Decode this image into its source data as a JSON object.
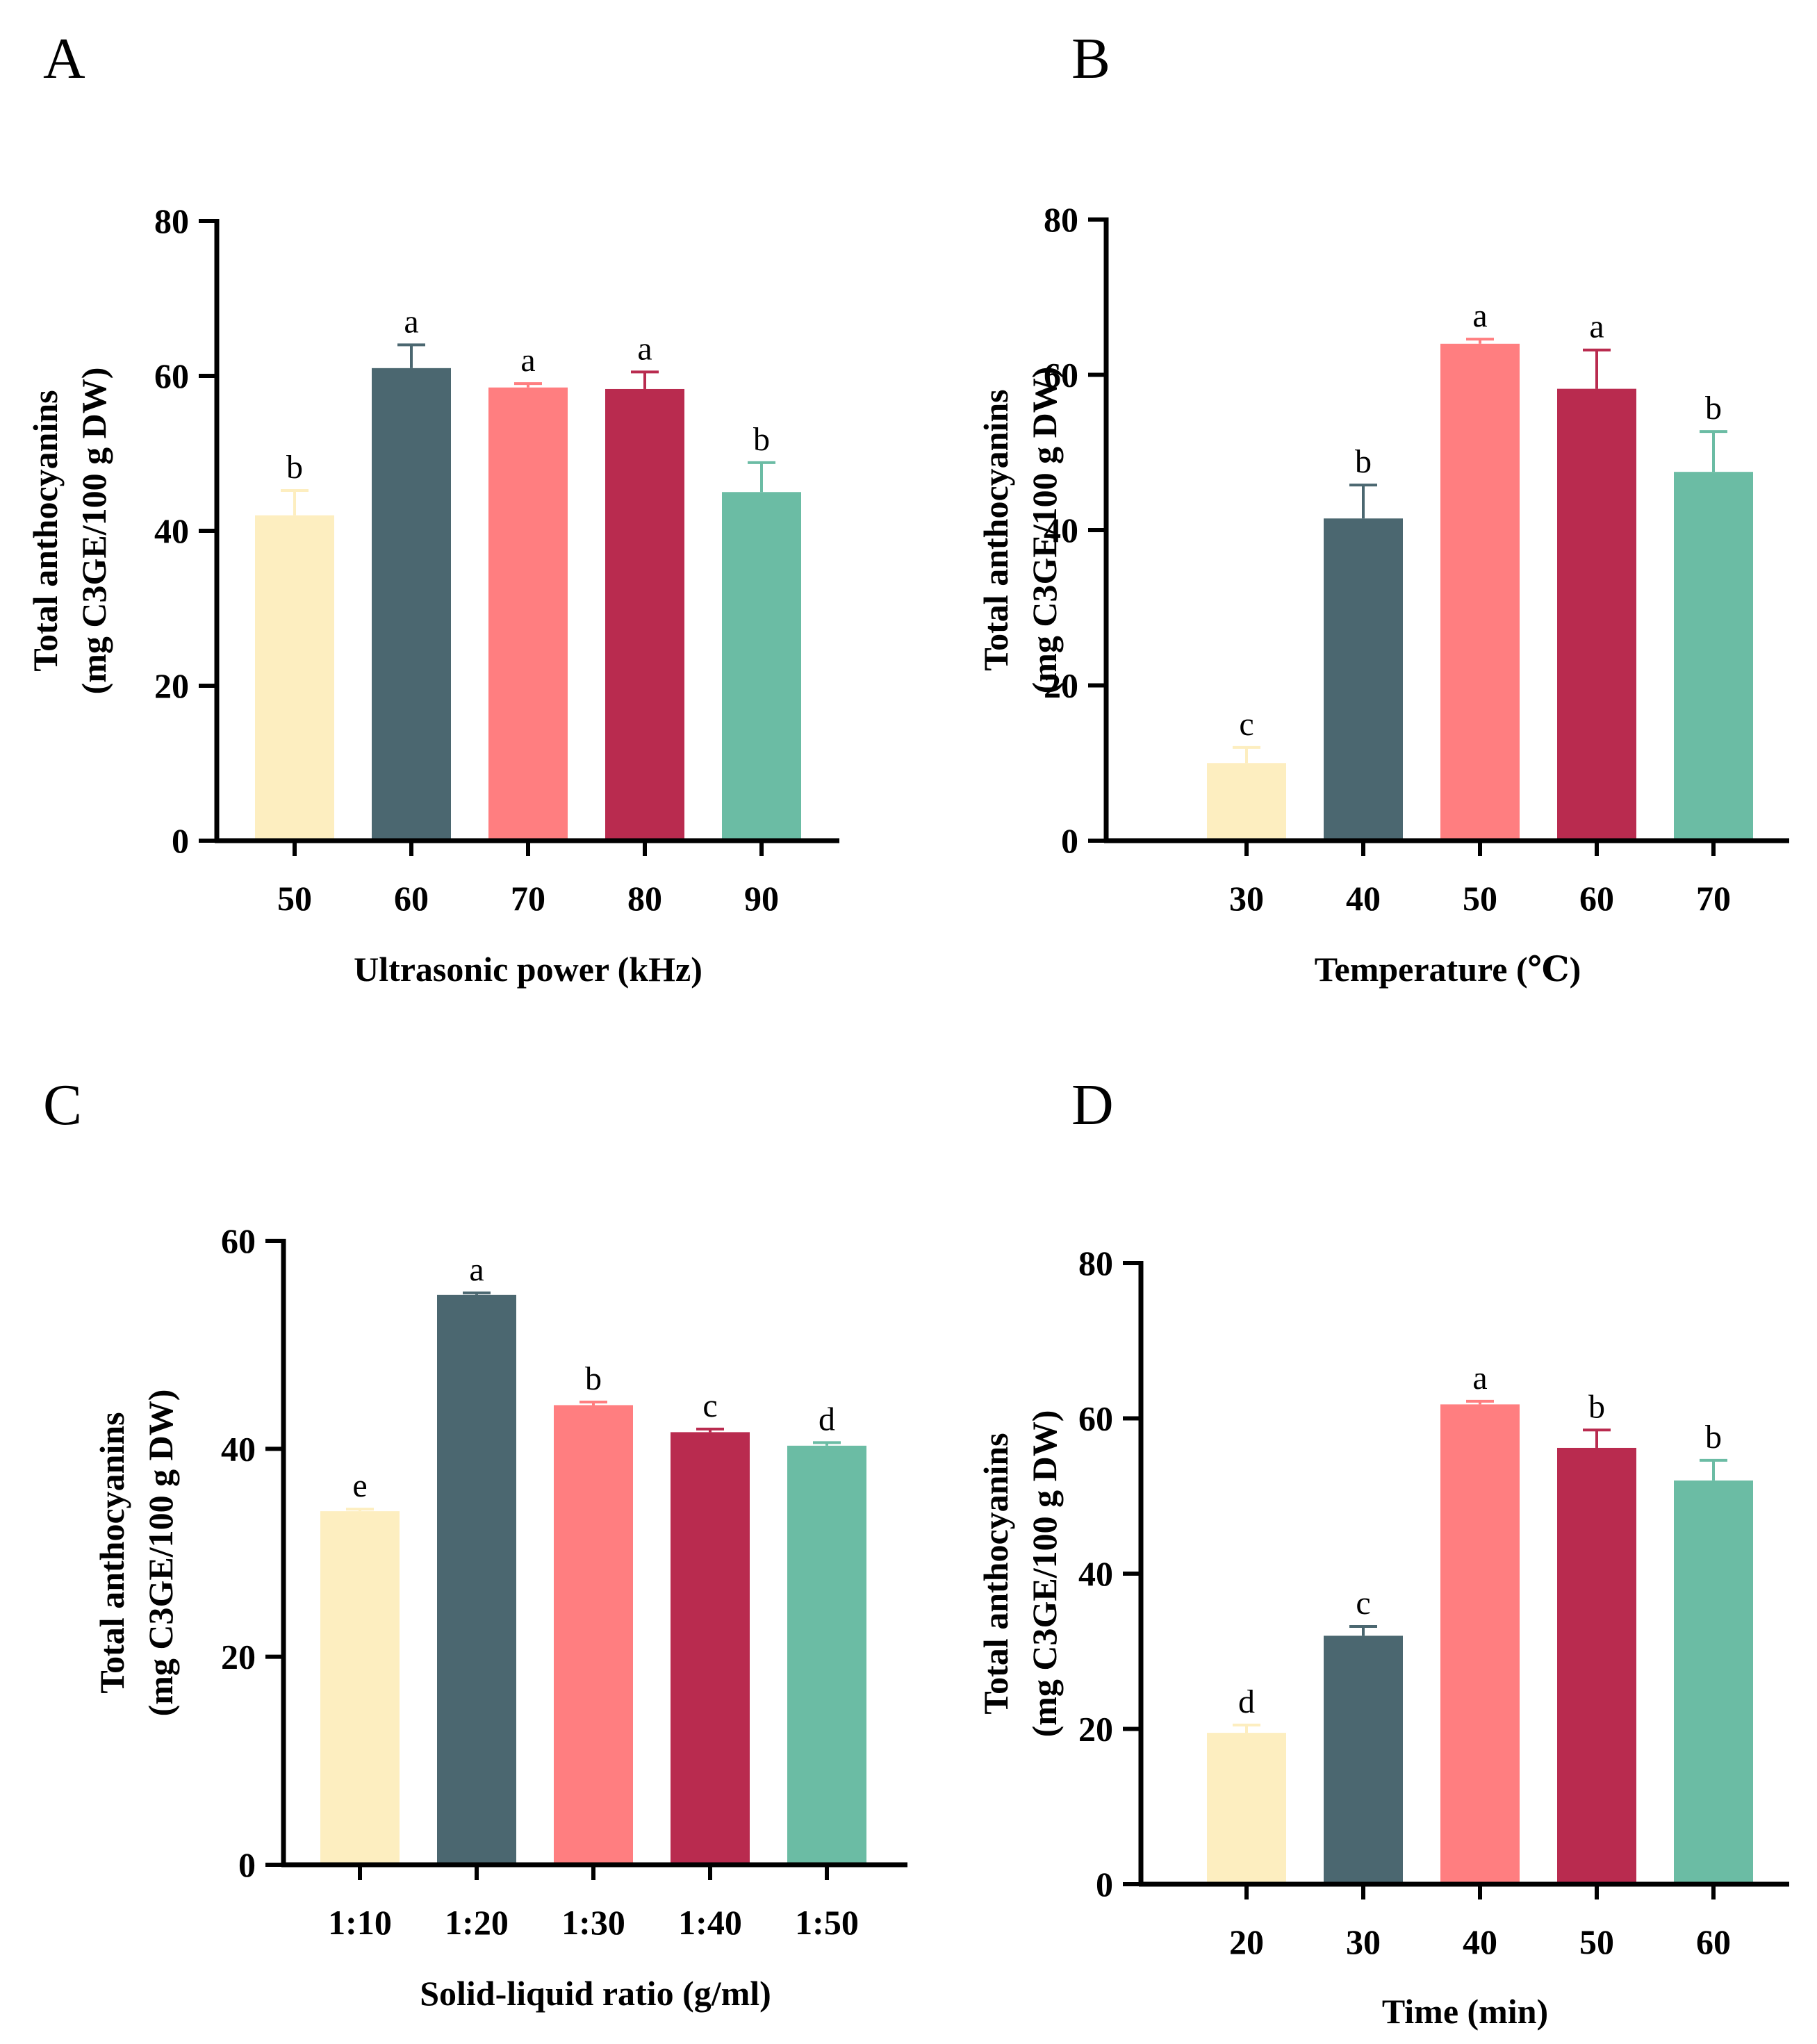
{
  "colors": [
    "#FDEEC0",
    "#4B6770",
    "#FF7E80",
    "#B92B4F",
    "#6BBCA4"
  ],
  "chart_data": [
    {
      "panel": "A",
      "type": "bar",
      "categories": [
        "50",
        "60",
        "70",
        "80",
        "90"
      ],
      "values": [
        42.0,
        61.0,
        58.5,
        58.3,
        45.0
      ],
      "errors": [
        3.2,
        3.0,
        0.5,
        2.2,
        3.8
      ],
      "significance": [
        "b",
        "a",
        "a",
        "a",
        "b"
      ],
      "xlabel": "Ultrasonic power (kHz)",
      "ylabel": "Total anthocyanins",
      "ylabel2": "(mg C3GE/100 g DW)",
      "ylim": [
        0,
        80
      ],
      "yticks": [
        "0",
        "20",
        "40",
        "60",
        "80"
      ],
      "grid": false
    },
    {
      "panel": "B",
      "type": "bar",
      "categories": [
        "30",
        "40",
        "50",
        "60",
        "70"
      ],
      "values": [
        10.0,
        41.5,
        64.0,
        58.2,
        47.5
      ],
      "errors": [
        2.0,
        4.3,
        0.6,
        5.0,
        5.2
      ],
      "significance": [
        "c",
        "b",
        "a",
        "a",
        "b"
      ],
      "xlabel": "Temperature (℃)",
      "ylabel": "Total anthocyanins",
      "ylabel2": "(mg C3GE/100 g DW)",
      "ylim": [
        0,
        80
      ],
      "yticks": [
        "0",
        "20",
        "40",
        "60",
        "80"
      ],
      "grid": false
    },
    {
      "panel": "C",
      "type": "bar",
      "categories": [
        "1:10",
        "1:20",
        "1:30",
        "1:40",
        "1:50"
      ],
      "values": [
        34.0,
        54.8,
        44.2,
        41.6,
        40.3
      ],
      "errors": [
        0.2,
        0.2,
        0.3,
        0.3,
        0.3
      ],
      "significance": [
        "e",
        "a",
        "b",
        "c",
        "d"
      ],
      "xlabel": "Solid-liquid ratio (g/ml)",
      "ylabel": "Total anthocyanins",
      "ylabel2": "(mg C3GE/100 g DW)",
      "ylim": [
        0,
        60
      ],
      "yticks": [
        "0",
        "20",
        "40",
        "60"
      ],
      "grid": false
    },
    {
      "panel": "D",
      "type": "bar",
      "categories": [
        "20",
        "30",
        "40",
        "50",
        "60"
      ],
      "values": [
        19.5,
        32.0,
        61.8,
        56.2,
        52.0
      ],
      "errors": [
        1.0,
        1.2,
        0.4,
        2.3,
        2.6
      ],
      "significance": [
        "d",
        "c",
        "a",
        "b",
        "b"
      ],
      "xlabel": "Time (min)",
      "ylabel": "Total anthocyanins",
      "ylabel2": "(mg C3GE/100 g DW)",
      "ylim": [
        0,
        80
      ],
      "yticks": [
        "0",
        "20",
        "40",
        "60",
        "80"
      ],
      "grid": false
    }
  ]
}
